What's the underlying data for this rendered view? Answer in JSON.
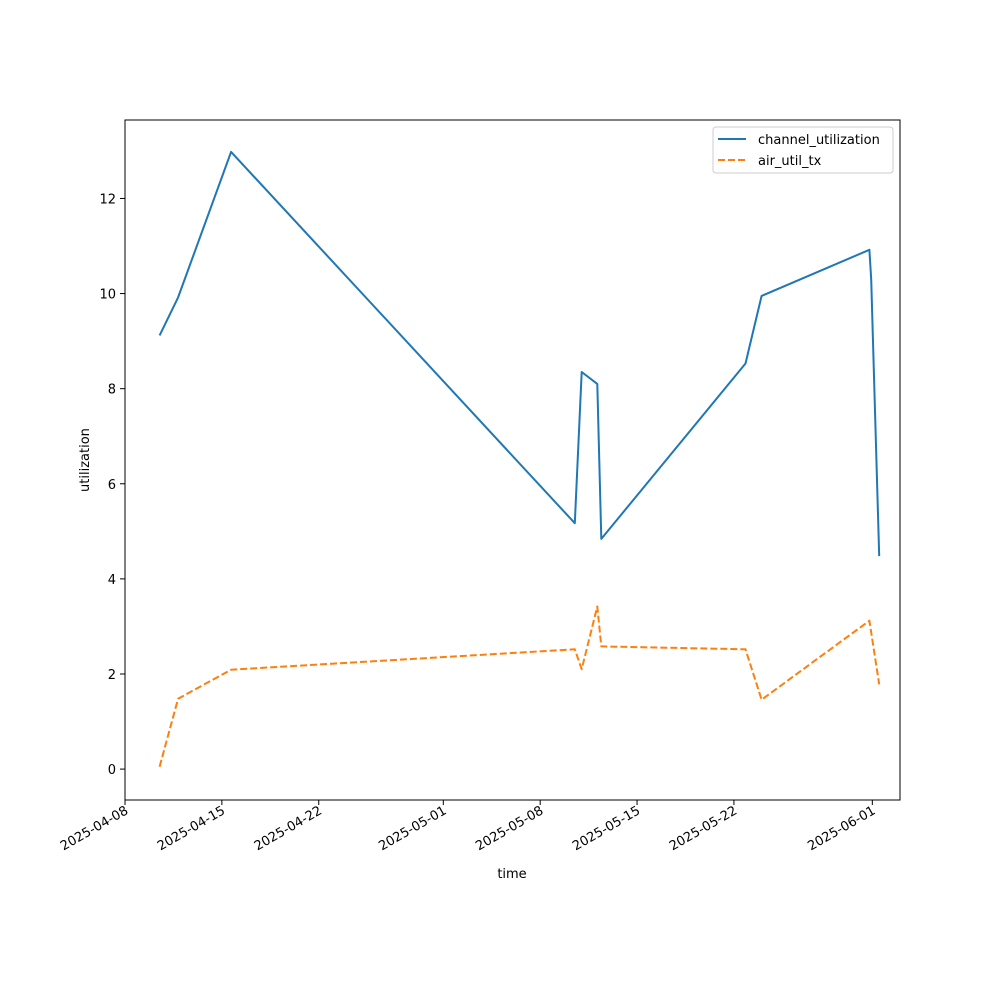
{
  "chart_data": {
    "type": "line",
    "title": "",
    "xlabel": "time",
    "ylabel": "utilization",
    "x_ticks": [
      "2025-04-08",
      "2025-04-15",
      "2025-04-22",
      "2025-05-01",
      "2025-05-08",
      "2025-05-15",
      "2025-05-22",
      "2025-06-01"
    ],
    "y_ticks": [
      0,
      2,
      4,
      6,
      8,
      10,
      12
    ],
    "xlim": [
      "2025-04-08",
      "2025-06-03"
    ],
    "ylim": [
      -0.65,
      13.65
    ],
    "grid": false,
    "legend_position": "top-right",
    "series": [
      {
        "name": "channel_utilization",
        "color": "#1f77b4",
        "style": "solid",
        "points": [
          {
            "x": "2025-04-10T12:00",
            "y": 9.12
          },
          {
            "x": "2025-04-11T20:00",
            "y": 9.92
          },
          {
            "x": "2025-04-15T16:00",
            "y": 12.98
          },
          {
            "x": "2025-05-10T12:00",
            "y": 5.17
          },
          {
            "x": "2025-05-11T00:00",
            "y": 8.35
          },
          {
            "x": "2025-05-12T03:00",
            "y": 8.1
          },
          {
            "x": "2025-05-12T10:00",
            "y": 4.84
          },
          {
            "x": "2025-05-22T20:00",
            "y": 8.53
          },
          {
            "x": "2025-05-24T00:00",
            "y": 9.95
          },
          {
            "x": "2025-05-31T19:00",
            "y": 10.92
          },
          {
            "x": "2025-05-31T22:00",
            "y": 10.3
          },
          {
            "x": "2025-06-01T12:00",
            "y": 4.48
          }
        ]
      },
      {
        "name": "air_util_tx",
        "color": "#ff7f0e",
        "style": "dashed",
        "points": [
          {
            "x": "2025-04-10T12:00",
            "y": 0.05
          },
          {
            "x": "2025-04-11T20:00",
            "y": 1.48
          },
          {
            "x": "2025-04-15T16:00",
            "y": 2.09
          },
          {
            "x": "2025-05-10T12:00",
            "y": 2.52
          },
          {
            "x": "2025-05-11T00:00",
            "y": 2.1
          },
          {
            "x": "2025-05-12T03:00",
            "y": 3.42
          },
          {
            "x": "2025-05-12T10:00",
            "y": 2.58
          },
          {
            "x": "2025-05-22T20:00",
            "y": 2.52
          },
          {
            "x": "2025-05-24T00:00",
            "y": 1.46
          },
          {
            "x": "2025-05-31T19:00",
            "y": 3.12
          },
          {
            "x": "2025-06-01T12:00",
            "y": 1.78
          }
        ]
      }
    ]
  }
}
